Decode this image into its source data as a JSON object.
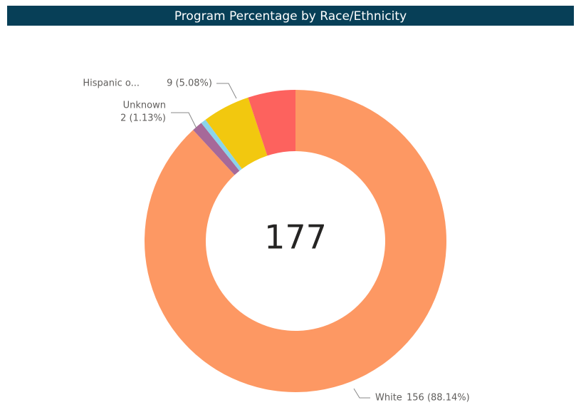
{
  "chart_data": {
    "type": "donut",
    "title": "Program Percentage by Race/Ethnicity",
    "categories": [
      "White",
      "Unknown",
      null,
      "Hispanic o...",
      null
    ],
    "values": [
      156,
      2,
      1,
      9,
      9
    ],
    "value_labels": [
      "156 (88.14%)",
      "2 (1.13%)",
      null,
      "9 (5.08%)",
      null
    ],
    "colors": [
      "#FD9863",
      "#A66999",
      "#8AD4EB",
      "#F2C80F",
      "#FD625E"
    ],
    "total": 177
  }
}
